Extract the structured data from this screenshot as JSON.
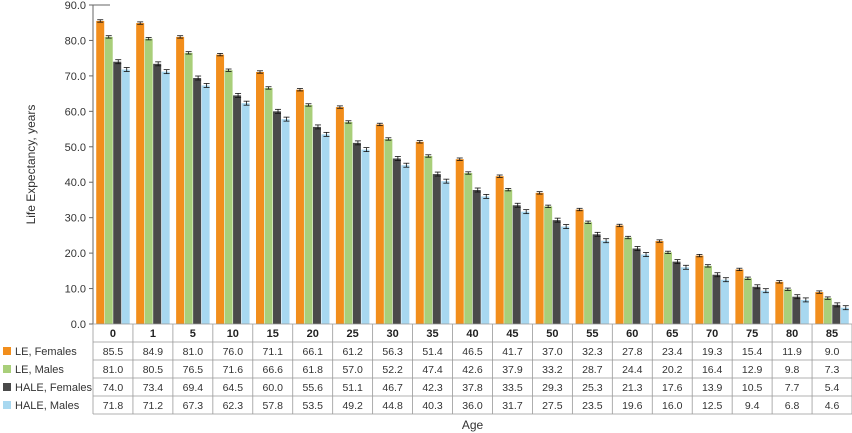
{
  "chart_data": {
    "type": "bar",
    "ylabel": "Life Expectancy, years",
    "xlabel": "Age",
    "ylim": [
      0,
      90
    ],
    "yticks": [
      "0.0",
      "10.0",
      "20.0",
      "30.0",
      "40.0",
      "50.0",
      "60.0",
      "70.0",
      "80.0",
      "90.0"
    ],
    "grid": false,
    "legend_position": "left, in data table",
    "categories": [
      "0",
      "1",
      "5",
      "10",
      "15",
      "20",
      "25",
      "30",
      "35",
      "40",
      "45",
      "50",
      "55",
      "60",
      "65",
      "70",
      "75",
      "80",
      "85"
    ],
    "series": [
      {
        "name": "LE, Females",
        "color": "#F28E1C",
        "values": [
          85.5,
          84.9,
          81.0,
          76.0,
          71.1,
          66.1,
          61.2,
          56.3,
          51.4,
          46.5,
          41.7,
          37.0,
          32.3,
          27.8,
          23.4,
          19.3,
          15.4,
          11.9,
          9.0
        ],
        "labels": [
          "85.5",
          "84.9",
          "81.0",
          "76.0",
          "71.1",
          "66.1",
          "61.2",
          "56.3",
          "51.4",
          "46.5",
          "41.7",
          "37.0",
          "32.3",
          "27.8",
          "23.4",
          "19.3",
          "15.4",
          "11.9",
          "9.0"
        ]
      },
      {
        "name": "LE, Males",
        "color": "#A9CF7A",
        "values": [
          81.0,
          80.5,
          76.5,
          71.6,
          66.6,
          61.8,
          57.0,
          52.2,
          47.4,
          42.6,
          37.9,
          33.2,
          28.7,
          24.4,
          20.2,
          16.4,
          12.9,
          9.8,
          7.3
        ],
        "labels": [
          "81.0",
          "80.5",
          "76.5",
          "71.6",
          "66.6",
          "61.8",
          "57.0",
          "52.2",
          "47.4",
          "42.6",
          "37.9",
          "33.2",
          "28.7",
          "24.4",
          "20.2",
          "16.4",
          "12.9",
          "9.8",
          "7.3"
        ]
      },
      {
        "name": "HALE, Females",
        "color": "#4A4A4A",
        "values": [
          74.0,
          73.4,
          69.4,
          64.5,
          60.0,
          55.6,
          51.1,
          46.7,
          42.3,
          37.8,
          33.5,
          29.3,
          25.3,
          21.3,
          17.6,
          13.9,
          10.5,
          7.7,
          5.4
        ],
        "labels": [
          "74.0",
          "73.4",
          "69.4",
          "64.5",
          "60.0",
          "55.6",
          "51.1",
          "46.7",
          "42.3",
          "37.8",
          "33.5",
          "29.3",
          "25.3",
          "21.3",
          "17.6",
          "13.9",
          "10.5",
          "7.7",
          "5.4"
        ]
      },
      {
        "name": "HALE, Males",
        "color": "#A8D8F0",
        "values": [
          71.8,
          71.2,
          67.3,
          62.3,
          57.8,
          53.5,
          49.2,
          44.8,
          40.3,
          36.0,
          31.7,
          27.5,
          23.5,
          19.6,
          16.0,
          12.5,
          9.4,
          6.8,
          4.6
        ],
        "labels": [
          "71.8",
          "71.2",
          "67.3",
          "62.3",
          "57.8",
          "53.5",
          "49.2",
          "44.8",
          "40.3",
          "36.0",
          "31.7",
          "27.5",
          "23.5",
          "19.6",
          "16.0",
          "12.5",
          "9.4",
          "6.8",
          "4.6"
        ]
      }
    ]
  }
}
